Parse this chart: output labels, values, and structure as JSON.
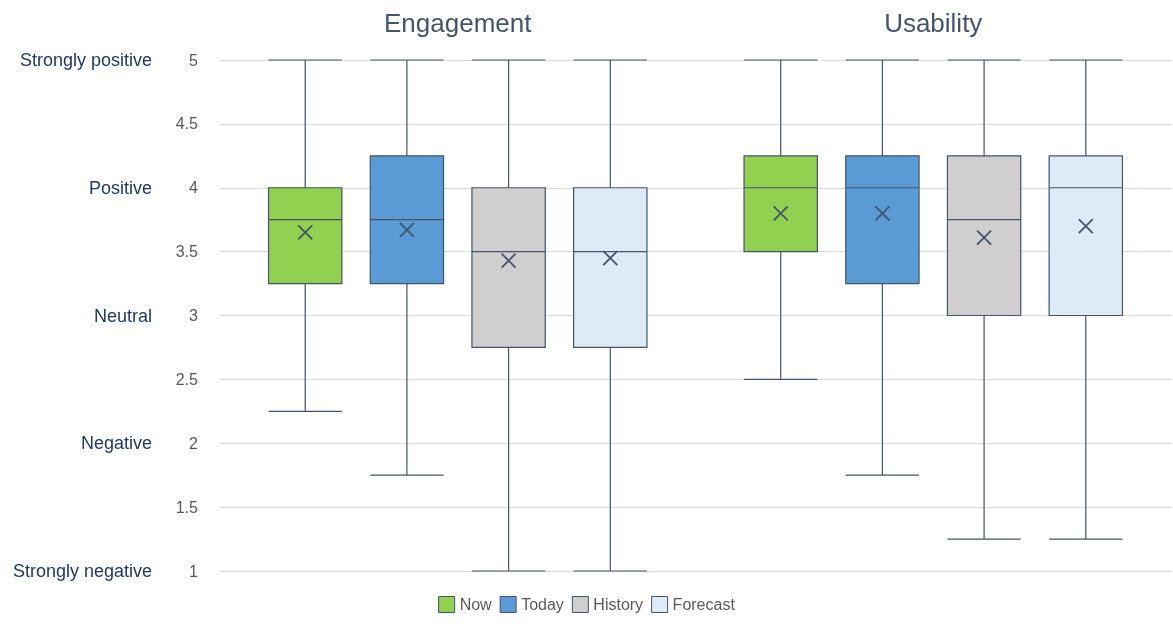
{
  "chart_data": {
    "type": "box",
    "categories": [
      "Engagement",
      "Usability"
    ],
    "ylim": [
      1,
      5
    ],
    "yticks": [
      1,
      1.5,
      2,
      2.5,
      3,
      3.5,
      4,
      4.5,
      5
    ],
    "y2_categories": [
      "Strongly positive",
      "Positive",
      "Neutral",
      "Negative",
      "Strongly negative"
    ],
    "grid": "y",
    "legend": "bottom",
    "series": [
      {
        "name": "Now",
        "color": "#92d050",
        "boxes": [
          {
            "low": 2.25,
            "q1": 3.25,
            "median": 3.75,
            "q3": 4,
            "high": 5,
            "mean": 3.65
          },
          {
            "low": 2.5,
            "q1": 3.5,
            "median": 4,
            "q3": 4.25,
            "high": 5,
            "mean": 3.8
          }
        ]
      },
      {
        "name": "Today",
        "color": "#5b9bd5",
        "boxes": [
          {
            "low": 1.75,
            "q1": 3.25,
            "median": 3.75,
            "q3": 4.25,
            "high": 5,
            "mean": 3.67
          },
          {
            "low": 1.75,
            "q1": 3.25,
            "median": 4,
            "q3": 4.25,
            "high": 5,
            "mean": 3.8
          }
        ]
      },
      {
        "name": "History",
        "color": "#d0cece",
        "boxes": [
          {
            "low": 1,
            "q1": 2.75,
            "median": 3.5,
            "q3": 4,
            "high": 5,
            "mean": 3.43
          },
          {
            "low": 1.25,
            "q1": 3,
            "median": 3.75,
            "q3": 4.25,
            "high": 5,
            "mean": 3.61
          }
        ]
      },
      {
        "name": "Forecast",
        "color": "#deebf7",
        "boxes": [
          {
            "low": 1,
            "q1": 2.75,
            "median": 3.5,
            "q3": 4,
            "high": 5,
            "mean": 3.45
          },
          {
            "low": 1.25,
            "q1": 3,
            "median": 4,
            "q3": 4.25,
            "high": 5,
            "mean": 3.7
          }
        ]
      }
    ]
  }
}
